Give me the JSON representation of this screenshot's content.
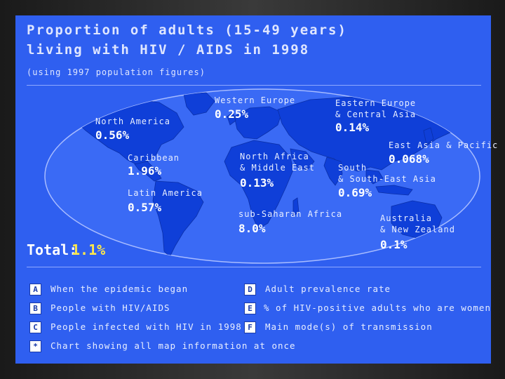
{
  "title_line1": "Proportion of adults (15-49 years)",
  "title_line2": "living with HIV / AIDS in 1998",
  "subtitle": "(using 1997 population figures)",
  "regions": [
    {
      "name": "Western Europe",
      "value": "0.25%"
    },
    {
      "name": "Eastern Europe",
      "name2": "& Central Asia",
      "value": "0.14%"
    },
    {
      "name": "North America",
      "value": "0.56%"
    },
    {
      "name": "East Asia & Pacific",
      "value": "0.068%"
    },
    {
      "name": "Caribbean",
      "value": "1.96%"
    },
    {
      "name": "North Africa",
      "name2": "& Middle East",
      "value": "0.13%"
    },
    {
      "name": "South",
      "name2": "& South-East Asia",
      "value": "0.69%"
    },
    {
      "name": "Latin America",
      "value": "0.57%"
    },
    {
      "name": "sub-Saharan Africa",
      "value": "8.0%"
    },
    {
      "name": "Australia",
      "name2": "& New Zealand",
      "value": "0.1%"
    }
  ],
  "total": {
    "label": "Total:",
    "value": "1.1%"
  },
  "options": [
    {
      "key": "A",
      "label": "When the epidemic began"
    },
    {
      "key": "B",
      "label": "People with HIV/AIDS"
    },
    {
      "key": "C",
      "label": "People infected with HIV in 1998"
    },
    {
      "key": "D",
      "label": "Adult prevalence rate"
    },
    {
      "key": "E",
      "label": "% of HIV-positive adults who are women"
    },
    {
      "key": "F",
      "label": "Main mode(s) of transmission"
    },
    {
      "key": "*",
      "label": "Chart showing all map information at once"
    }
  ],
  "colors": {
    "background": "#2f5ff0",
    "land": "#0f3fd8",
    "total_value": "#ffe84a"
  }
}
